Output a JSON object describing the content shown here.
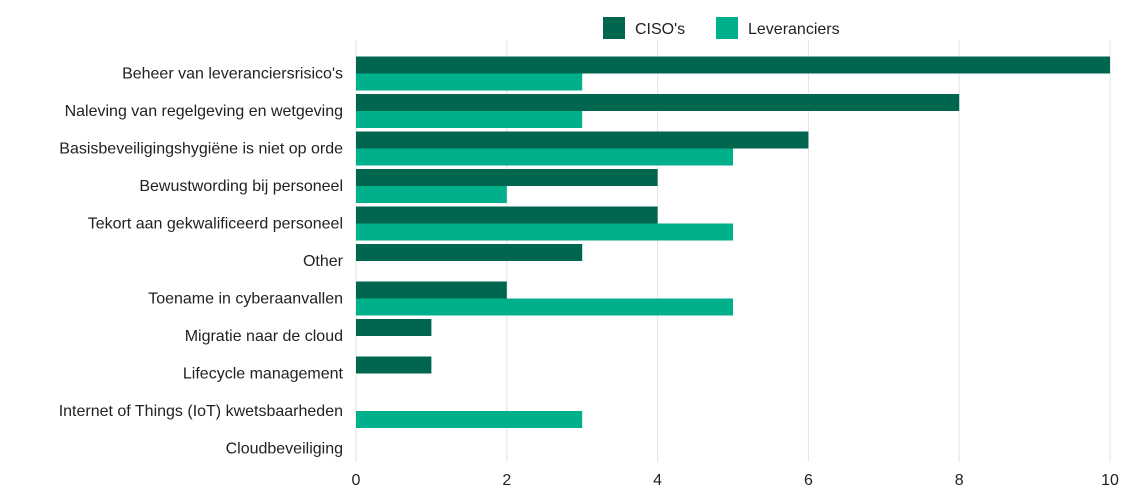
{
  "chart_data": {
    "type": "bar",
    "orientation": "horizontal",
    "title": "",
    "xlabel": "",
    "ylabel": "",
    "categories": [
      "Beheer van leveranciersrisico's",
      "Naleving van regelgeving en wetgeving",
      "Basisbeveiligingshygiëne is niet op orde",
      "Bewustwording bij personeel",
      "Tekort aan gekwalificeerd personeel",
      "Other",
      "Toename in cyberaanvallen",
      "Migratie naar de cloud",
      "Lifecycle management",
      "Internet of Things (IoT) kwetsbaarheden",
      "Cloudbeveiliging"
    ],
    "series": [
      {
        "name": "CISO's",
        "color": "#00664f",
        "values": [
          10,
          8,
          6,
          4,
          4,
          3,
          2,
          1,
          1,
          0,
          0
        ]
      },
      {
        "name": "Leveranciers",
        "color": "#00b08b",
        "values": [
          3,
          3,
          5,
          2,
          5,
          0,
          5,
          0,
          0,
          3,
          0
        ]
      }
    ],
    "xlim": [
      0,
      10
    ],
    "xticks": [
      "0",
      "2",
      "4",
      "6",
      "8",
      "10"
    ],
    "grid": true,
    "legend_position": "top"
  }
}
